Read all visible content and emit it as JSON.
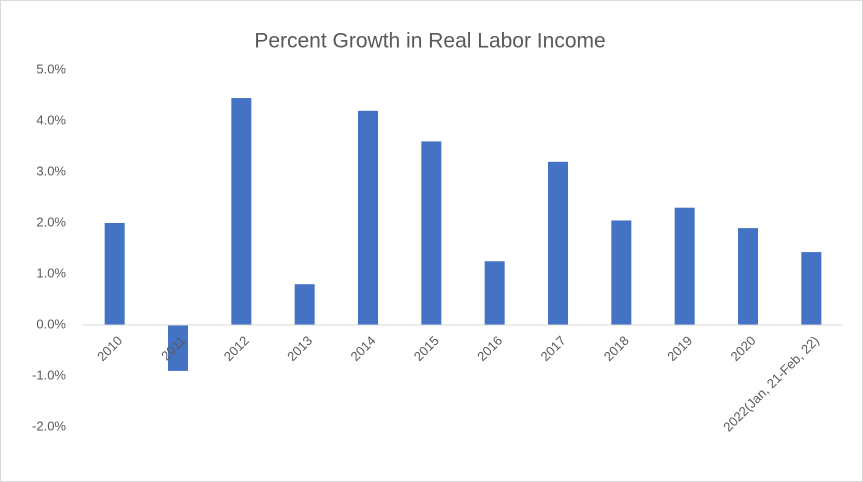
{
  "chart_data": {
    "type": "bar",
    "title": "Percent Growth in Real Labor Income",
    "categories": [
      "2010",
      "2011",
      "2012",
      "2013",
      "2014",
      "2015",
      "2016",
      "2017",
      "2018",
      "2019",
      "2020",
      "2022(Jan, 21-Feb, 22)"
    ],
    "values": [
      2.0,
      -0.9,
      4.45,
      0.8,
      4.2,
      3.6,
      1.25,
      3.2,
      2.05,
      2.3,
      1.9,
      1.43
    ],
    "color": "#4472c4",
    "ylim": [
      -2,
      5
    ],
    "yticks": [
      {
        "value": -2,
        "label": "-2.0%"
      },
      {
        "value": -1,
        "label": "-1.0%"
      },
      {
        "value": 0,
        "label": "0.0%"
      },
      {
        "value": 1,
        "label": "1.0%"
      },
      {
        "value": 2,
        "label": "2.0%"
      },
      {
        "value": 3,
        "label": "3.0%"
      },
      {
        "value": 4,
        "label": "4.0%"
      },
      {
        "value": 5,
        "label": "5.0%"
      }
    ],
    "grid": false
  }
}
